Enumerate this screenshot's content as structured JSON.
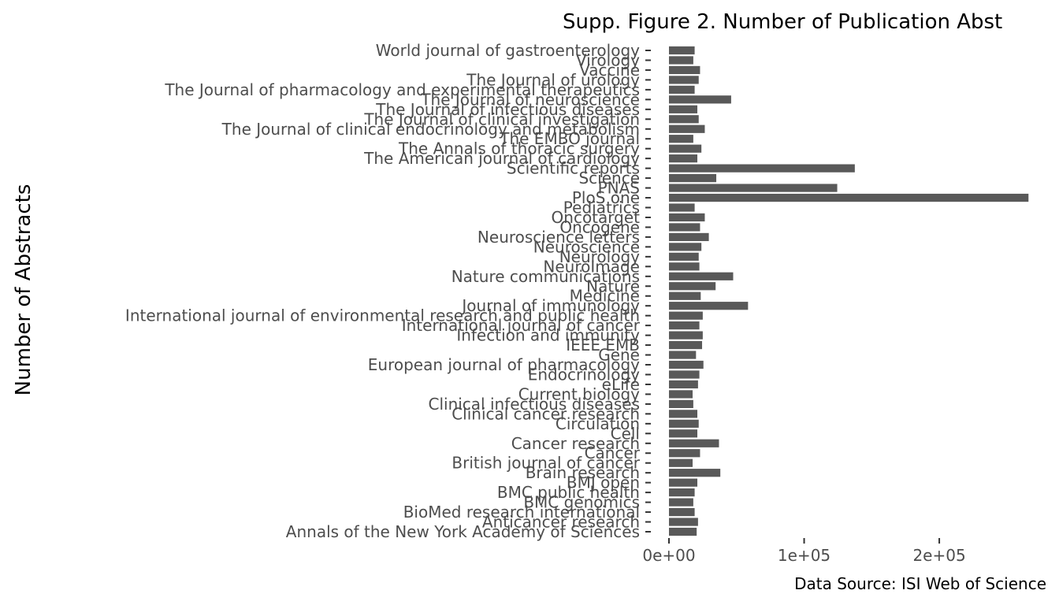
{
  "chart_data": {
    "type": "bar",
    "orientation": "horizontal",
    "title": "Supp. Figure 2. Number of Publication Abst",
    "ylabel": "Number of Abstracts",
    "xlabel": "",
    "caption": "Data Source: ISI Web of Science",
    "bar_color": "#595959",
    "grid": false,
    "xlim": [
      0,
      267000
    ],
    "x_ticks": [
      {
        "value": 0,
        "label": "0e+00"
      },
      {
        "value": 100000,
        "label": "1e+05"
      },
      {
        "value": 200000,
        "label": "2e+05"
      }
    ],
    "categories": [
      "World journal of gastroenterology",
      "Virology",
      "Vaccine",
      "The Journal of urology",
      "The Journal of pharmacology and experimental therapeutics",
      "The Journal of neuroscience",
      "The Journal of infectious diseases",
      "The Journal of clinical investigation",
      "The Journal of clinical endocrinology and metabolism",
      "The EMBO journal",
      "The Annals of thoracic surgery",
      "The American journal of cardiology",
      "Scientific reports",
      "Science",
      "PNAS",
      "PloS one",
      "Pediatrics",
      "Oncotarget",
      "Oncogene",
      "Neuroscience letters",
      "Neuroscience",
      "Neurology",
      "NeuroImage",
      "Nature communications",
      "Nature",
      "Medicine",
      "Journal of immunology",
      "International journal of environmental research and public health",
      "International journal of cancer",
      "Infection and immunity",
      "IEEE EMB",
      "Gene",
      "European journal of pharmacology",
      "Endocrinology",
      "eLife",
      "Current biology",
      "Clinical infectious diseases",
      "Clinical cancer research",
      "Circulation",
      "Cell",
      "Cancer research",
      "Cancer",
      "British journal of cancer",
      "Brain research",
      "BMJ open",
      "BMC public health",
      "BMC genomics",
      "BioMed research international",
      "Anticancer research",
      "Annals of the New York Academy of Sciences"
    ],
    "values": [
      19000,
      18000,
      23000,
      22000,
      19000,
      46000,
      21000,
      22000,
      26500,
      18000,
      24000,
      21000,
      137500,
      35000,
      124500,
      266000,
      19000,
      26500,
      23000,
      29500,
      24000,
      22000,
      22500,
      47500,
      34500,
      23500,
      58500,
      25000,
      22500,
      25000,
      24500,
      20000,
      25500,
      22500,
      21500,
      17500,
      18000,
      21000,
      22000,
      21000,
      37000,
      23000,
      17500,
      38000,
      21000,
      19000,
      18000,
      19000,
      21500,
      20500
    ]
  }
}
